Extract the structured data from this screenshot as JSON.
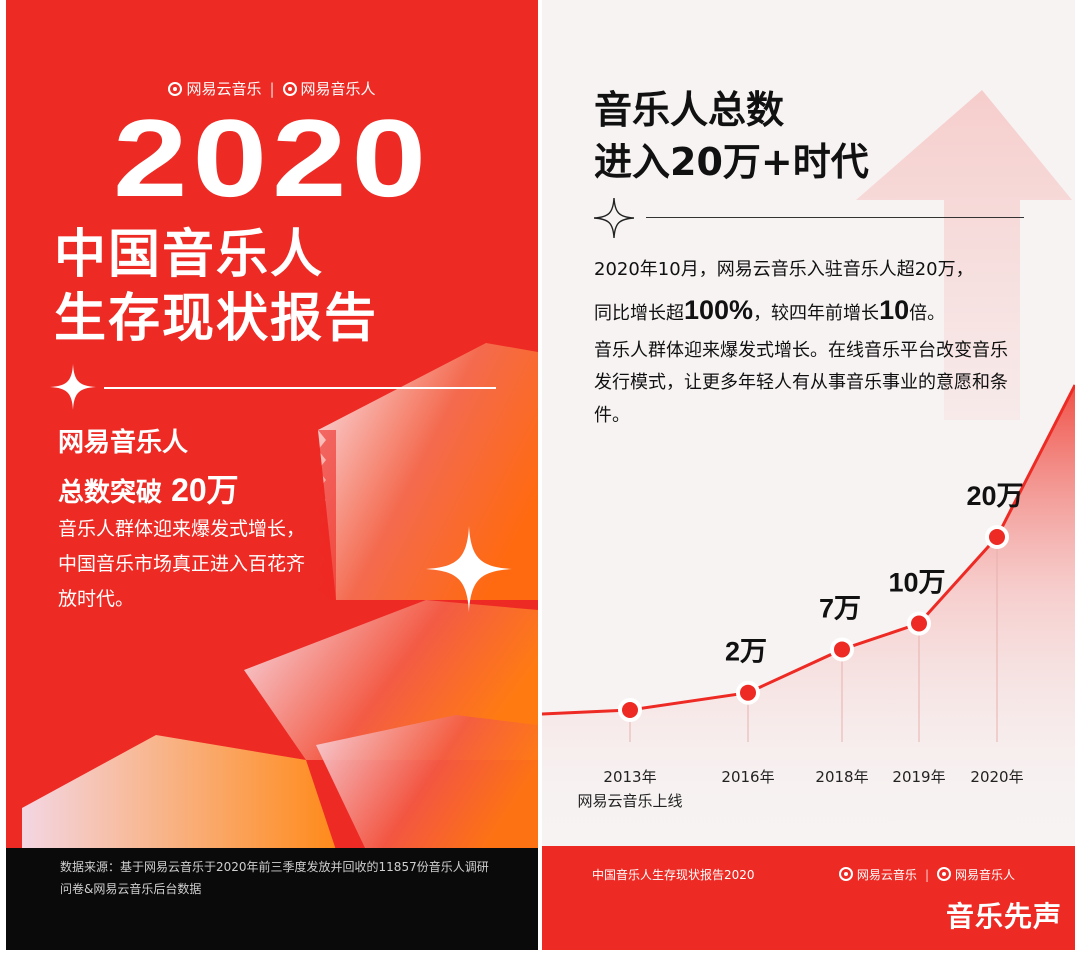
{
  "left": {
    "brand_netease": "网易云音乐",
    "brand_separator": "|",
    "brand_musician": "网易音乐人",
    "year": "2020",
    "title_line1": "中国音乐人",
    "title_line2": "生存现状报告",
    "highlight_line1": "网易音乐人",
    "highlight_line2_prefix": "总数突破",
    "highlight_line2_value": "20万",
    "desc": "音乐人群体迎来爆发式增长，中国音乐市场真正进入百花齐放时代。",
    "footer": "数据来源：基于网易云音乐于2020年前三季度发放并回收的11857份音乐人调研问卷&网易云音乐后台数据"
  },
  "right": {
    "heading_line1": "音乐人总数",
    "heading_line2": "进入20万+时代",
    "para_line1": "2020年10月，网易云音乐入驻音乐人超20万，",
    "para_line2_a": "同比增长超",
    "para_line2_b": "100%",
    "para_line2_c": "，较四年前增长",
    "para_line2_d": "10",
    "para_line2_e": "倍。",
    "para_rest": "音乐人群体迎来爆发式增长。在线音乐平台改变音乐发行模式，让更多年轻人有从事音乐事业的意愿和条件。",
    "footer_title": "中国音乐人生存现状报告2020",
    "footer_brand_netease": "网易云音乐",
    "footer_brand_musician": "网易音乐人"
  },
  "watermark": "音乐先声",
  "colors": {
    "brand_red": "#ee2a24",
    "right_bg": "#f7f3f3",
    "footer_black": "#0a0a0a"
  },
  "chart_data": {
    "type": "line",
    "unit": "万",
    "points": [
      {
        "x": "2013年",
        "x_sub": "网易云音乐上线",
        "y": 0,
        "label": ""
      },
      {
        "x": "2016年",
        "x_sub": "",
        "y": 2,
        "label": "2万"
      },
      {
        "x": "2018年",
        "x_sub": "",
        "y": 7,
        "label": "7万"
      },
      {
        "x": "2019年",
        "x_sub": "",
        "y": 10,
        "label": "10万"
      },
      {
        "x": "2020年",
        "x_sub": "",
        "y": 20,
        "label": "20万"
      }
    ]
  }
}
